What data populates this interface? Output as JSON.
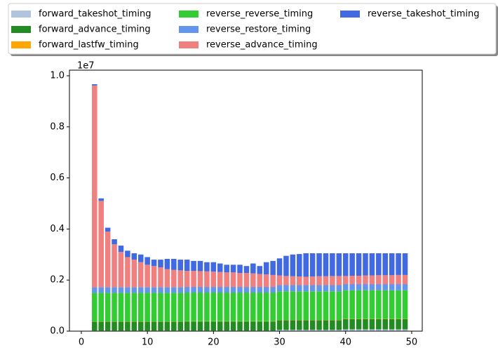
{
  "chart_data": {
    "type": "stacked_bar",
    "y_offset_label": "1e7",
    "x": [
      2,
      3,
      4,
      5,
      6,
      7,
      8,
      9,
      10,
      11,
      12,
      13,
      14,
      15,
      16,
      17,
      18,
      19,
      20,
      21,
      22,
      23,
      24,
      25,
      26,
      27,
      28,
      29,
      30,
      31,
      32,
      33,
      34,
      35,
      36,
      37,
      38,
      39,
      40,
      41,
      42,
      43,
      44,
      45,
      46,
      47,
      48,
      49
    ],
    "series": [
      {
        "name": "forward_takeshot_timing",
        "color": "#b0c4de",
        "values": [
          0.002,
          0.002,
          0.002,
          0.002,
          0.002,
          0.002,
          0.002,
          0.002,
          0.002,
          0.002,
          0.002,
          0.002,
          0.002,
          0.002,
          0.002,
          0.002,
          0.002,
          0.002,
          0.002,
          0.002,
          0.002,
          0.002,
          0.002,
          0.002,
          0.002,
          0.002,
          0.002,
          0.002,
          0.005,
          0.005,
          0.005,
          0.005,
          0.005,
          0.005,
          0.005,
          0.005,
          0.005,
          0.005,
          0.007,
          0.007,
          0.007,
          0.007,
          0.007,
          0.007,
          0.007,
          0.007,
          0.007,
          0.007
        ]
      },
      {
        "name": "forward_advance_timing",
        "color": "#228b22",
        "values": [
          0.035,
          0.035,
          0.035,
          0.035,
          0.035,
          0.035,
          0.035,
          0.035,
          0.035,
          0.035,
          0.035,
          0.035,
          0.035,
          0.035,
          0.036,
          0.036,
          0.036,
          0.036,
          0.036,
          0.036,
          0.036,
          0.036,
          0.036,
          0.036,
          0.036,
          0.036,
          0.036,
          0.036,
          0.038,
          0.038,
          0.038,
          0.038,
          0.038,
          0.038,
          0.038,
          0.038,
          0.038,
          0.038,
          0.04,
          0.04,
          0.04,
          0.04,
          0.04,
          0.04,
          0.04,
          0.04,
          0.04,
          0.04
        ]
      },
      {
        "name": "forward_lastfw_timing",
        "color": "#ffa500",
        "values": [
          0.001,
          0.001,
          0.001,
          0.001,
          0.001,
          0.001,
          0.001,
          0.001,
          0.001,
          0.001,
          0.001,
          0.001,
          0.001,
          0.001,
          0.001,
          0.001,
          0.001,
          0.001,
          0.001,
          0.001,
          0.001,
          0.001,
          0.001,
          0.001,
          0.001,
          0.001,
          0.001,
          0.001,
          0.001,
          0.001,
          0.001,
          0.001,
          0.001,
          0.001,
          0.001,
          0.001,
          0.001,
          0.001,
          0.001,
          0.001,
          0.001,
          0.001,
          0.001,
          0.001,
          0.001,
          0.001,
          0.001,
          0.001
        ]
      },
      {
        "name": "reverse_reverse_timing",
        "color": "#32cd32",
        "values": [
          0.112,
          0.112,
          0.112,
          0.112,
          0.112,
          0.112,
          0.112,
          0.112,
          0.112,
          0.112,
          0.112,
          0.112,
          0.112,
          0.112,
          0.112,
          0.112,
          0.112,
          0.112,
          0.112,
          0.112,
          0.112,
          0.112,
          0.112,
          0.112,
          0.112,
          0.112,
          0.112,
          0.112,
          0.112,
          0.112,
          0.112,
          0.112,
          0.112,
          0.112,
          0.112,
          0.112,
          0.112,
          0.112,
          0.112,
          0.112,
          0.112,
          0.112,
          0.112,
          0.112,
          0.112,
          0.112,
          0.112,
          0.112
        ]
      },
      {
        "name": "reverse_restore_timing",
        "color": "#6495ed",
        "values": [
          0.022,
          0.022,
          0.022,
          0.022,
          0.022,
          0.022,
          0.022,
          0.022,
          0.022,
          0.022,
          0.022,
          0.022,
          0.022,
          0.022,
          0.022,
          0.022,
          0.022,
          0.022,
          0.022,
          0.022,
          0.022,
          0.022,
          0.022,
          0.022,
          0.022,
          0.022,
          0.022,
          0.022,
          0.024,
          0.024,
          0.024,
          0.024,
          0.024,
          0.024,
          0.024,
          0.024,
          0.024,
          0.024,
          0.024,
          0.024,
          0.024,
          0.024,
          0.024,
          0.024,
          0.024,
          0.024,
          0.024,
          0.024
        ]
      },
      {
        "name": "reverse_advance_timing",
        "color": "#f08080",
        "values": [
          0.79,
          0.338,
          0.218,
          0.168,
          0.138,
          0.118,
          0.108,
          0.098,
          0.088,
          0.083,
          0.078,
          0.071,
          0.068,
          0.066,
          0.063,
          0.063,
          0.062,
          0.061,
          0.06,
          0.059,
          0.057,
          0.057,
          0.055,
          0.055,
          0.053,
          0.051,
          0.049,
          0.047,
          0.038,
          0.036,
          0.035,
          0.034,
          0.033,
          0.034,
          0.035,
          0.035,
          0.036,
          0.036,
          0.032,
          0.033,
          0.033,
          0.034,
          0.034,
          0.035,
          0.035,
          0.035,
          0.036,
          0.036
        ]
      },
      {
        "name": "reverse_takeshot_timing",
        "color": "#4169e1",
        "values": [
          0.005,
          0.01,
          0.015,
          0.02,
          0.025,
          0.025,
          0.025,
          0.03,
          0.03,
          0.025,
          0.03,
          0.04,
          0.043,
          0.042,
          0.044,
          0.039,
          0.04,
          0.036,
          0.037,
          0.033,
          0.03,
          0.03,
          0.032,
          0.027,
          0.039,
          0.031,
          0.048,
          0.055,
          0.067,
          0.079,
          0.085,
          0.088,
          0.092,
          0.091,
          0.09,
          0.09,
          0.089,
          0.089,
          0.089,
          0.088,
          0.088,
          0.087,
          0.087,
          0.086,
          0.086,
          0.086,
          0.085,
          0.085
        ]
      }
    ],
    "xlim": [
      -1.8,
      51.6
    ],
    "ylim": [
      0,
      1.022
    ],
    "xticks": [
      0,
      10,
      20,
      30,
      40,
      50
    ],
    "yticks": [
      {
        "value": 0,
        "label": "0.0"
      },
      0.2,
      0.4,
      0.6,
      0.8,
      {
        "value": 1,
        "label": "1.0"
      }
    ],
    "bar_width": 0.8
  }
}
